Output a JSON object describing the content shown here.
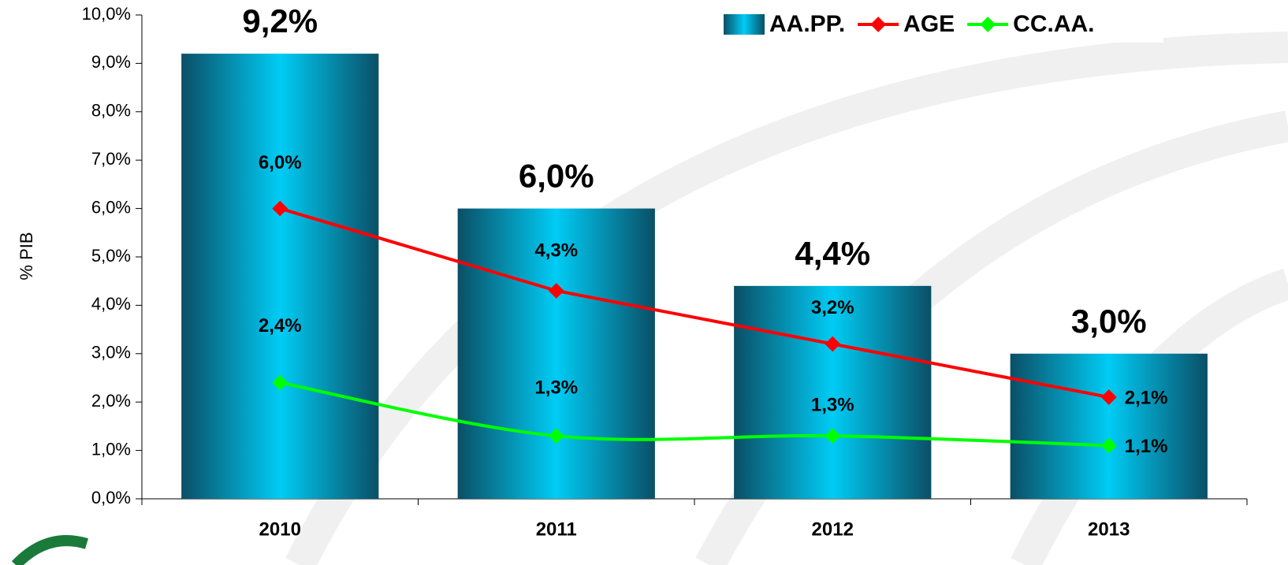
{
  "chart_data": {
    "type": "bar",
    "y_label": "% PIB",
    "categories": [
      "2010",
      "2011",
      "2012",
      "2013"
    ],
    "ylim": [
      0,
      10
    ],
    "yticks": [
      {
        "value": 0,
        "label": "0,0%"
      },
      {
        "value": 1,
        "label": "1,0%"
      },
      {
        "value": 2,
        "label": "2,0%"
      },
      {
        "value": 3,
        "label": "3,0%"
      },
      {
        "value": 4,
        "label": "4,0%"
      },
      {
        "value": 5,
        "label": "5,0%"
      },
      {
        "value": 6,
        "label": "6,0%"
      },
      {
        "value": 7,
        "label": "7,0%"
      },
      {
        "value": 8,
        "label": "8,0%"
      },
      {
        "value": 9,
        "label": "9,0%"
      },
      {
        "value": 10,
        "label": "10,0%"
      }
    ],
    "series": [
      {
        "name": "AA.PP.",
        "type": "bar",
        "color": "#00c8f0",
        "values": [
          9.2,
          6.0,
          4.4,
          3.0
        ],
        "value_labels": [
          "9,2%",
          "6,0%",
          "4,4%",
          "3,0%"
        ]
      },
      {
        "name": "AGE",
        "type": "line",
        "color": "#ff0000",
        "values": [
          6.0,
          4.3,
          3.2,
          2.1
        ],
        "value_labels": [
          "6,0%",
          "4,3%",
          "3,2%",
          "2,1%"
        ]
      },
      {
        "name": "CC.AA.",
        "type": "line",
        "color": "#00ff00",
        "smooth": true,
        "values": [
          2.4,
          1.3,
          1.3,
          1.1
        ],
        "value_labels": [
          "2,4%",
          "1,3%",
          "1,3%",
          "1,1%"
        ]
      }
    ]
  }
}
